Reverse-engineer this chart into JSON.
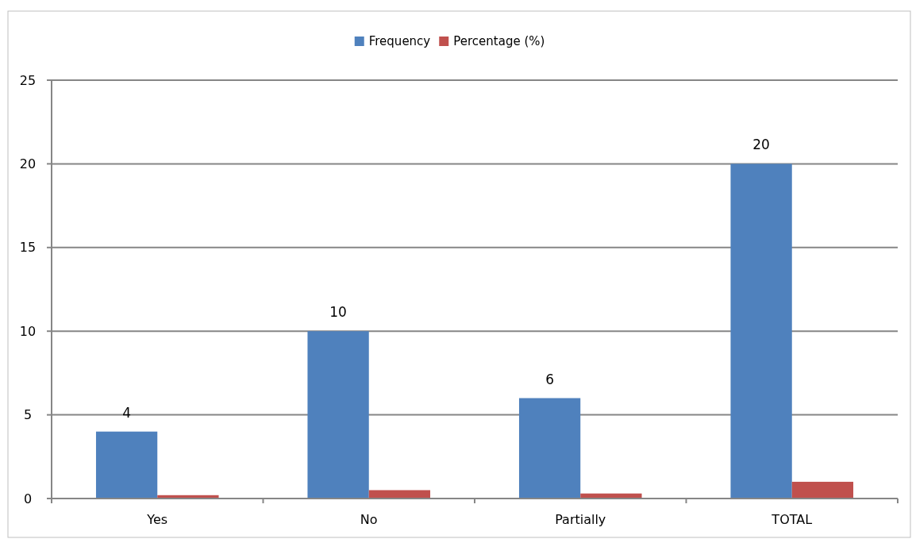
{
  "chart_data": {
    "type": "bar",
    "categories": [
      "Yes",
      "No",
      "Partially",
      "TOTAL"
    ],
    "series": [
      {
        "name": "Frequency",
        "color": "#4f81bd",
        "values": [
          4,
          10,
          6,
          20
        ],
        "value_labels": [
          "4",
          "10",
          "6",
          "20"
        ]
      },
      {
        "name": "Percentage (%)",
        "color": "#c0504d",
        "values": [
          0.2,
          0.5,
          0.3,
          1
        ]
      }
    ],
    "ylim": [
      0,
      25
    ],
    "yticks": [
      0,
      5,
      10,
      15,
      20,
      25
    ],
    "grid": "y",
    "legend": "top"
  }
}
